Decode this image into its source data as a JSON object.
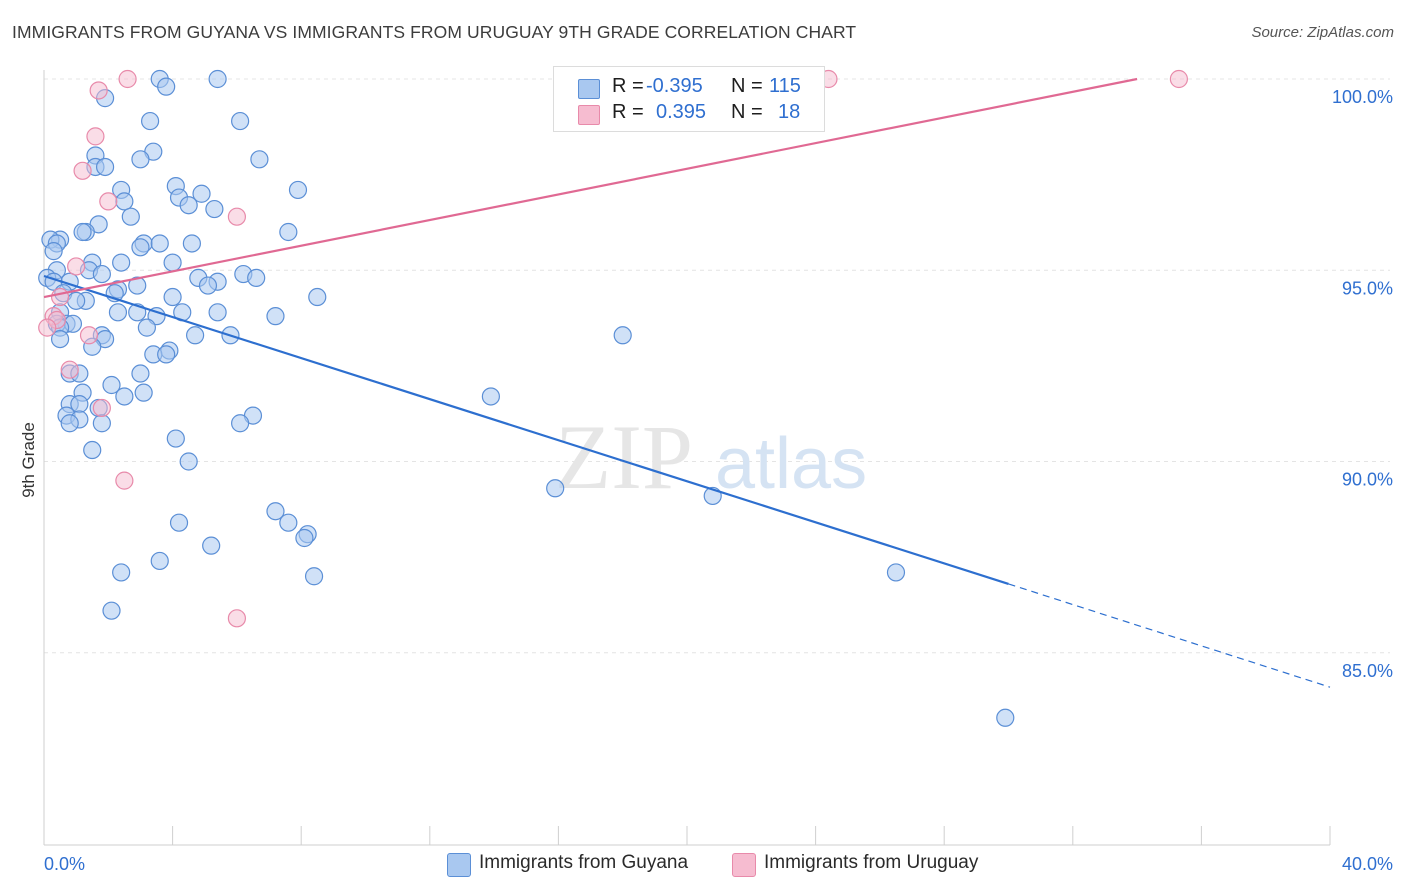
{
  "title": "IMMIGRANTS FROM GUYANA VS IMMIGRANTS FROM URUGUAY 9TH GRADE CORRELATION CHART",
  "source": "Source: ZipAtlas.com",
  "watermark": {
    "zip": "ZIP",
    "atlas": "atlas"
  },
  "legend": {
    "rows": [
      {
        "r_label": "R =",
        "r_value": "-0.395",
        "n_label": "N =",
        "n_value": "115"
      },
      {
        "r_label": "R =",
        "r_value": "0.395",
        "n_label": "N =",
        "n_value": "18"
      }
    ]
  },
  "bottom_legend": {
    "guyana": "Immigrants from Guyana",
    "uruguay": "Immigrants from Uruguay"
  },
  "colors": {
    "guyana_fill": "#a9c8f0",
    "guyana_stroke": "#5b8fd6",
    "guyana_line": "#2d6fcf",
    "uruguay_fill": "#f6bcd0",
    "uruguay_stroke": "#e88aaa",
    "uruguay_line": "#e06993",
    "axis_text": "#2f6fd0",
    "grid": "#e4e4e4"
  },
  "chart_data": {
    "type": "scatter",
    "title": "IMMIGRANTS FROM GUYANA VS IMMIGRANTS FROM URUGUAY 9TH GRADE CORRELATION CHART",
    "xlabel": "",
    "ylabel": "9th Grade",
    "xlim": [
      0,
      40
    ],
    "ylim": [
      80.0,
      100.8
    ],
    "x_tick_labels": [
      "0.0%",
      "40.0%"
    ],
    "y_ticks": [
      85,
      90,
      95,
      100
    ],
    "y_tick_labels": [
      "85.0%",
      "90.0%",
      "95.0%",
      "100.0%"
    ],
    "grid": true,
    "series": [
      {
        "name": "Immigrants from Guyana",
        "r": -0.395,
        "n": 115,
        "trend": {
          "x0": 0,
          "y0": 94.85,
          "x1": 30.0,
          "y1": 86.8,
          "dash_to_x": 40.0,
          "dash_to_y": 84.1
        },
        "points": [
          [
            3.6,
            100
          ],
          [
            5.4,
            100
          ],
          [
            3.8,
            99.8
          ],
          [
            1.9,
            99.5
          ],
          [
            3.3,
            98.9
          ],
          [
            6.1,
            98.9
          ],
          [
            3.4,
            98.1
          ],
          [
            1.6,
            98.0
          ],
          [
            3.0,
            97.9
          ],
          [
            6.7,
            97.9
          ],
          [
            1.6,
            97.7
          ],
          [
            1.9,
            97.7
          ],
          [
            4.1,
            97.2
          ],
          [
            2.4,
            97.1
          ],
          [
            7.9,
            97.1
          ],
          [
            4.9,
            97.0
          ],
          [
            4.2,
            96.9
          ],
          [
            2.5,
            96.8
          ],
          [
            4.5,
            96.7
          ],
          [
            5.3,
            96.6
          ],
          [
            2.7,
            96.4
          ],
          [
            1.7,
            96.2
          ],
          [
            1.3,
            96.0
          ],
          [
            1.2,
            96.0
          ],
          [
            7.6,
            96.0
          ],
          [
            0.5,
            95.8
          ],
          [
            0.2,
            95.8
          ],
          [
            0.4,
            95.7
          ],
          [
            3.1,
            95.7
          ],
          [
            3.6,
            95.7
          ],
          [
            4.6,
            95.7
          ],
          [
            3.0,
            95.6
          ],
          [
            0.3,
            95.5
          ],
          [
            1.5,
            95.2
          ],
          [
            2.4,
            95.2
          ],
          [
            4.0,
            95.2
          ],
          [
            1.4,
            95.0
          ],
          [
            0.4,
            95.0
          ],
          [
            1.8,
            94.9
          ],
          [
            6.2,
            94.9
          ],
          [
            6.6,
            94.8
          ],
          [
            4.8,
            94.8
          ],
          [
            0.1,
            94.8
          ],
          [
            0.3,
            94.7
          ],
          [
            0.8,
            94.7
          ],
          [
            5.4,
            94.7
          ],
          [
            5.1,
            94.6
          ],
          [
            2.9,
            94.6
          ],
          [
            2.3,
            94.5
          ],
          [
            2.2,
            94.4
          ],
          [
            0.6,
            94.4
          ],
          [
            8.5,
            94.3
          ],
          [
            4.0,
            94.3
          ],
          [
            1.3,
            94.2
          ],
          [
            1.0,
            94.2
          ],
          [
            0.5,
            93.9
          ],
          [
            2.3,
            93.9
          ],
          [
            2.9,
            93.9
          ],
          [
            4.3,
            93.9
          ],
          [
            5.4,
            93.9
          ],
          [
            3.5,
            93.8
          ],
          [
            7.2,
            93.8
          ],
          [
            0.7,
            93.6
          ],
          [
            0.4,
            93.6
          ],
          [
            0.9,
            93.6
          ],
          [
            0.5,
            93.5
          ],
          [
            3.2,
            93.5
          ],
          [
            1.8,
            93.3
          ],
          [
            5.8,
            93.3
          ],
          [
            4.7,
            93.3
          ],
          [
            0.5,
            93.2
          ],
          [
            1.9,
            93.2
          ],
          [
            18.0,
            93.3
          ],
          [
            1.5,
            93.0
          ],
          [
            3.9,
            92.9
          ],
          [
            3.4,
            92.8
          ],
          [
            3.8,
            92.8
          ],
          [
            0.8,
            92.3
          ],
          [
            1.1,
            92.3
          ],
          [
            3.0,
            92.3
          ],
          [
            2.1,
            92.0
          ],
          [
            1.2,
            91.8
          ],
          [
            3.1,
            91.8
          ],
          [
            13.9,
            91.7
          ],
          [
            2.5,
            91.7
          ],
          [
            0.8,
            91.5
          ],
          [
            1.1,
            91.5
          ],
          [
            1.7,
            91.4
          ],
          [
            0.7,
            91.2
          ],
          [
            1.1,
            91.1
          ],
          [
            6.5,
            91.2
          ],
          [
            6.1,
            91.0
          ],
          [
            1.8,
            91.0
          ],
          [
            0.8,
            91.0
          ],
          [
            4.1,
            90.6
          ],
          [
            1.5,
            90.3
          ],
          [
            4.5,
            90.0
          ],
          [
            15.9,
            89.3
          ],
          [
            20.8,
            89.1
          ],
          [
            7.2,
            88.7
          ],
          [
            4.2,
            88.4
          ],
          [
            7.6,
            88.4
          ],
          [
            8.2,
            88.1
          ],
          [
            8.1,
            88.0
          ],
          [
            5.2,
            87.8
          ],
          [
            3.6,
            87.4
          ],
          [
            2.4,
            87.1
          ],
          [
            8.4,
            87.0
          ],
          [
            26.5,
            87.1
          ],
          [
            2.1,
            86.1
          ],
          [
            29.9,
            83.3
          ]
        ]
      },
      {
        "name": "Immigrants from Uruguay",
        "r": 0.395,
        "n": 18,
        "trend": {
          "x0": 0,
          "y0": 94.3,
          "x1": 34.0,
          "y1": 100.0
        },
        "points": [
          [
            2.6,
            100
          ],
          [
            24.4,
            100
          ],
          [
            35.3,
            100
          ],
          [
            1.7,
            99.7
          ],
          [
            1.6,
            98.5
          ],
          [
            1.2,
            97.6
          ],
          [
            2.0,
            96.8
          ],
          [
            6.0,
            96.4
          ],
          [
            1.0,
            95.1
          ],
          [
            0.5,
            94.3
          ],
          [
            0.3,
            93.8
          ],
          [
            0.4,
            93.7
          ],
          [
            0.1,
            93.5
          ],
          [
            1.4,
            93.3
          ],
          [
            0.8,
            92.4
          ],
          [
            1.8,
            91.4
          ],
          [
            2.5,
            89.5
          ],
          [
            6.0,
            85.9
          ]
        ]
      }
    ]
  }
}
